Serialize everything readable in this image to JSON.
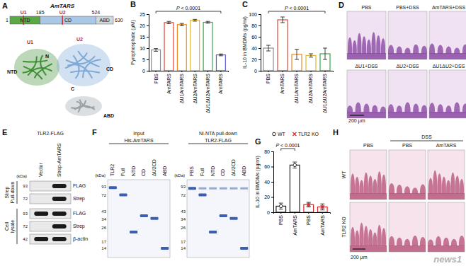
{
  "chart_data": [
    {
      "type": "bar",
      "title": "B",
      "y_label": "Pyrophosphate (μM)",
      "categories": [
        "PBS",
        "AmTARS",
        "ΔU1AmTARS",
        "ΔU2AmTARS",
        "ΔU1ΔU2AmTARS",
        "AmTARS"
      ],
      "values": [
        9.2,
        21.3,
        20.4,
        22.3,
        21.4,
        7.0
      ],
      "errors": [
        0.6,
        0.5,
        0.5,
        0.4,
        0.4,
        0.4
      ],
      "colors": [
        "#8c8c8c",
        "#e0473a",
        "#f08a24",
        "#e2b72f",
        "#3aa64a",
        "#5a5fd6"
      ],
      "ylim": [
        0,
        25
      ],
      "yticks": [
        0,
        5,
        10,
        15,
        20,
        25
      ],
      "annotations": [
        "P < 0.0001"
      ]
    },
    {
      "type": "bar",
      "title": "C",
      "y_label": "IL-10 in BMDMs (pg/ml)",
      "categories": [
        "PBS",
        "AmTARS",
        "ΔU1AmTARS",
        "ΔU2AmTARS",
        "ΔU1ΔU2AmTARS"
      ],
      "values": [
        40,
        90,
        29,
        27,
        30
      ],
      "errors": [
        5,
        5,
        9,
        3,
        10
      ],
      "colors": [
        "#8c8c8c",
        "#e0473a",
        "#f08a24",
        "#e2b72f",
        "#3aa64a"
      ],
      "ylim": [
        0,
        100
      ],
      "yticks": [
        0,
        20,
        40,
        60,
        80,
        100
      ],
      "annotations": [
        "P < 0.0001"
      ]
    },
    {
      "type": "bar",
      "title": "G",
      "y_label": "IL-10 in BMDMs (pg/ml)",
      "categories": [
        "PBS",
        "AmTARS",
        "PBS",
        "AmTARS"
      ],
      "series": [
        {
          "name": "WT",
          "color": "#222222",
          "marker": "circle",
          "values": [
            8,
            62,
            null,
            null
          ],
          "errors": [
            4,
            4,
            null,
            null
          ]
        },
        {
          "name": "TLR2 KO",
          "color": "#d62728",
          "marker": "x",
          "values": [
            null,
            null,
            10,
            7
          ],
          "errors": [
            null,
            null,
            3,
            4
          ]
        }
      ],
      "legend": "top-left",
      "ylim": [
        0,
        80
      ],
      "yticks": [
        0,
        20,
        40,
        60,
        80
      ],
      "annotations": [
        "P < 0.0001"
      ]
    }
  ],
  "panel_a": {
    "letter": "A",
    "title": "AmTARS",
    "residues": [
      1,
      185,
      524,
      630
    ],
    "domains": [
      "NTD",
      "CD",
      "ABD"
    ],
    "insertions": [
      "U1",
      "U2"
    ],
    "structure": {
      "insertions": [
        "U1",
        "U2"
      ],
      "termini": [
        "N",
        "C"
      ],
      "domains": [
        "NTD",
        "CD",
        "ABD"
      ]
    }
  },
  "panel_d": {
    "letter": "D",
    "images": [
      "PBS",
      "PBS+DSS",
      "AmTARS+DSS",
      "ΔU1+DSS",
      "ΔU2+DSS",
      "ΔU1ΔU2+DSS"
    ],
    "scale_bar": "200 μm"
  },
  "panel_e": {
    "letter": "E",
    "title": "TLR2-FLAG",
    "lanes": [
      "Vector",
      "Strep-AmTARS"
    ],
    "unit": "(kDa)",
    "groups": [
      [
        "Strep",
        "Pull-down"
      ],
      [
        "Cell",
        "lysate"
      ]
    ],
    "blots": [
      {
        "kda": 93,
        "label": "FLAG"
      },
      {
        "kda": 72,
        "label": "Strep"
      },
      {
        "kda": 93,
        "label": "FLAG"
      },
      {
        "kda": 72,
        "label": "Strep"
      },
      {
        "kda": 42,
        "label": "β-actin"
      }
    ]
  },
  "panel_f": {
    "letter": "F",
    "gels": [
      {
        "title": "Input",
        "subtitle": "His-AmTARS",
        "unit": "(kDa)",
        "lanes": [
          "TLR2",
          "Full",
          "NTD",
          "CD",
          "ΔU2CD",
          "ABD"
        ],
        "ladder": [
          93,
          72,
          43,
          34,
          26,
          17,
          14
        ]
      },
      {
        "title": "Ni-NTA pull-down",
        "subtitle": "TLR2-FLAG",
        "unit": "(kDa)",
        "lanes": [
          "PBS",
          "Full",
          "NTD",
          "CD",
          "ΔU2CD",
          "ABD"
        ],
        "ladder": [
          93,
          72,
          43,
          34,
          26,
          17,
          14
        ]
      }
    ]
  },
  "panel_h": {
    "letter": "H",
    "column_group": "DSS",
    "columns": [
      "PBS",
      "PBS",
      "AmTARS"
    ],
    "rows": [
      "WT",
      "TLR2 KO"
    ],
    "scale_bar": "200 μm"
  },
  "watermark": "news1"
}
